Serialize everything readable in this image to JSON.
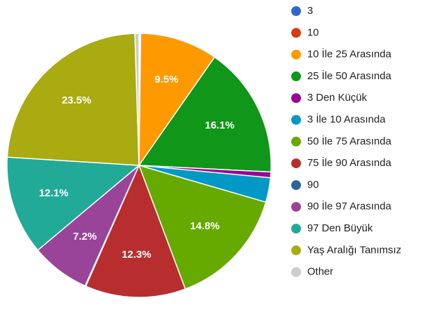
{
  "chart_data": {
    "type": "pie",
    "categories": [
      "3",
      "10",
      "10 İle 25 Arasında",
      "25 İle 50 Arasında",
      "3 Den Küçük",
      "3 İle 10 Arasında",
      "50 İle 75 Arasında",
      "75 İle 90 Arasında",
      "90",
      "90 İle 97 Arasında",
      "97 Den Büyük",
      "Yaş Aralığı Tanımsız",
      "Other"
    ],
    "values": [
      0.1,
      0.1,
      9.5,
      16.1,
      0.7,
      3.0,
      14.8,
      12.3,
      0.1,
      7.2,
      12.1,
      23.5,
      0.5
    ],
    "value_labels": [
      null,
      null,
      "9.5%",
      "16.1%",
      null,
      null,
      "14.8%",
      "12.3%",
      null,
      "7.2%",
      "12.1%",
      "23.5%",
      null
    ],
    "colors": [
      "#3366cc",
      "#dc3912",
      "#ff9900",
      "#109618",
      "#990099",
      "#0099c6",
      "#66aa00",
      "#b82e2e",
      "#316395",
      "#994499",
      "#22aa99",
      "#aaaa11",
      "#cccccc"
    ],
    "legend": "right"
  }
}
